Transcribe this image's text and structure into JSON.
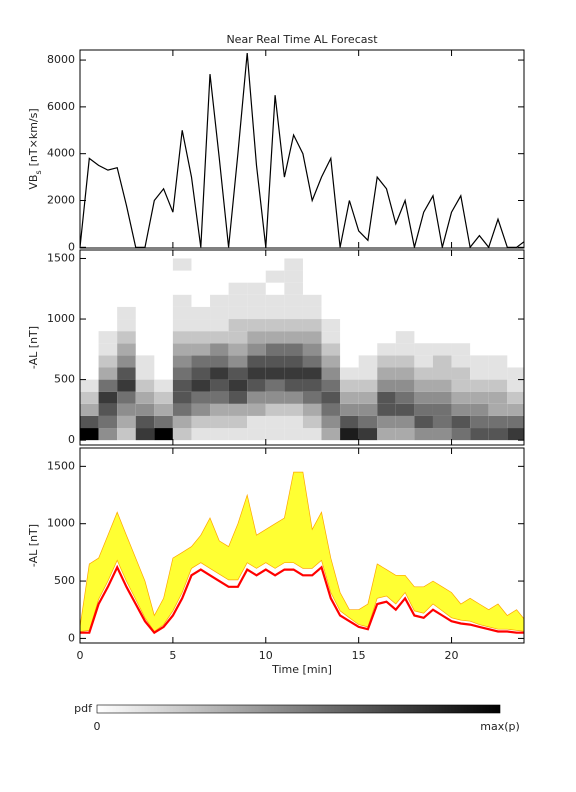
{
  "chart_data": [
    {
      "type": "line",
      "title": "Near Real Time AL Forecast",
      "ylabel": [
        "VB",
        "s",
        "[nT×km/s]"
      ],
      "x": [
        0,
        0.5,
        1,
        1.5,
        2,
        2.5,
        3,
        3.5,
        4,
        4.5,
        5,
        5.5,
        6,
        6.5,
        7,
        7.5,
        8,
        8.5,
        9,
        9.5,
        10,
        10.5,
        11,
        11.5,
        12,
        12.5,
        13,
        13.5,
        14,
        14.5,
        15,
        15.5,
        16,
        16.5,
        17,
        17.5,
        18,
        18.5,
        19,
        19.5,
        20,
        20.5,
        21,
        21.5,
        22,
        22.5,
        23,
        23.5,
        24
      ],
      "series": [
        {
          "color": "#000000",
          "values": [
            0,
            3800,
            3500,
            3300,
            3400,
            1800,
            0,
            0,
            2000,
            2500,
            1500,
            5000,
            3000,
            0,
            7400,
            3800,
            0,
            4000,
            8300,
            3500,
            0,
            6500,
            3000,
            4800,
            4000,
            2000,
            3000,
            3800,
            0,
            2000,
            700,
            300,
            3000,
            2500,
            1000,
            2000,
            0,
            1500,
            2200,
            0,
            1500,
            2200,
            0,
            500,
            0,
            1200,
            0,
            0,
            300
          ]
        }
      ],
      "xlim": [
        0,
        23.9
      ],
      "xticks": [
        0,
        5,
        10,
        15,
        20
      ],
      "ylim": [
        -30,
        8430
      ],
      "yticks": [
        0,
        2000,
        4000,
        6000,
        8000
      ]
    },
    {
      "type": "heatmap",
      "ylabel": "-AL [nT]",
      "x_bins": [
        0,
        1,
        2,
        3,
        4,
        5,
        6,
        7,
        8,
        9,
        10,
        11,
        12,
        13,
        14,
        15,
        16,
        17,
        18,
        19,
        20,
        21,
        22,
        23,
        24
      ],
      "y_bins": [
        0,
        100,
        200,
        300,
        400,
        500,
        600,
        700,
        800,
        900,
        1000,
        1100,
        1200,
        1300,
        1400,
        1500,
        1600
      ],
      "z": [
        [
          9,
          6,
          3,
          2,
          1,
          0,
          0,
          0,
          0,
          0,
          0,
          0,
          0,
          0,
          0,
          0
        ],
        [
          4,
          5,
          6,
          7,
          5,
          3,
          2,
          1,
          1,
          0,
          0,
          0,
          0,
          0,
          0,
          0
        ],
        [
          2,
          3,
          4,
          5,
          7,
          6,
          4,
          3,
          2,
          1,
          1,
          0,
          0,
          0,
          0,
          0
        ],
        [
          7,
          6,
          4,
          3,
          2,
          1,
          1,
          0,
          0,
          0,
          0,
          0,
          0,
          0,
          0,
          0
        ],
        [
          9,
          5,
          3,
          2,
          1,
          0,
          0,
          0,
          0,
          0,
          0,
          0,
          0,
          0,
          0,
          0
        ],
        [
          2,
          3,
          5,
          6,
          6,
          5,
          4,
          3,
          2,
          1,
          1,
          1,
          0,
          0,
          1,
          0
        ],
        [
          1,
          2,
          4,
          5,
          7,
          6,
          5,
          3,
          2,
          1,
          1,
          0,
          0,
          0,
          0,
          0
        ],
        [
          1,
          2,
          3,
          5,
          6,
          7,
          5,
          4,
          2,
          1,
          1,
          1,
          0,
          0,
          0,
          0
        ],
        [
          1,
          2,
          3,
          6,
          7,
          6,
          4,
          3,
          2,
          2,
          1,
          1,
          1,
          0,
          0,
          0
        ],
        [
          1,
          1,
          3,
          4,
          6,
          7,
          6,
          4,
          3,
          2,
          1,
          1,
          1,
          0,
          0,
          0
        ],
        [
          1,
          1,
          2,
          4,
          5,
          7,
          6,
          5,
          3,
          2,
          1,
          1,
          0,
          1,
          0,
          0
        ],
        [
          1,
          1,
          2,
          4,
          6,
          7,
          6,
          5,
          3,
          2,
          1,
          1,
          1,
          1,
          1,
          0
        ],
        [
          1,
          2,
          3,
          5,
          6,
          7,
          5,
          4,
          3,
          2,
          1,
          1,
          0,
          0,
          0,
          0
        ],
        [
          3,
          4,
          5,
          6,
          5,
          4,
          3,
          2,
          1,
          1,
          0,
          0,
          0,
          0,
          0,
          0
        ],
        [
          8,
          6,
          4,
          3,
          2,
          1,
          0,
          0,
          0,
          0,
          0,
          0,
          0,
          0,
          0,
          0
        ],
        [
          7,
          5,
          4,
          3,
          2,
          1,
          1,
          0,
          0,
          0,
          0,
          0,
          0,
          0,
          0,
          0
        ],
        [
          3,
          4,
          6,
          6,
          4,
          3,
          2,
          1,
          0,
          0,
          0,
          0,
          0,
          0,
          0,
          0
        ],
        [
          3,
          4,
          6,
          5,
          4,
          3,
          2,
          1,
          1,
          0,
          0,
          0,
          0,
          0,
          0,
          0
        ],
        [
          4,
          6,
          5,
          4,
          3,
          2,
          1,
          1,
          0,
          0,
          0,
          0,
          0,
          0,
          0,
          0
        ],
        [
          4,
          5,
          5,
          4,
          3,
          2,
          2,
          1,
          0,
          0,
          0,
          0,
          0,
          0,
          0,
          0
        ],
        [
          5,
          6,
          4,
          3,
          2,
          2,
          1,
          1,
          0,
          0,
          0,
          0,
          0,
          0,
          0,
          0
        ],
        [
          6,
          5,
          4,
          3,
          2,
          1,
          1,
          0,
          0,
          0,
          0,
          0,
          0,
          0,
          0,
          0
        ],
        [
          6,
          5,
          3,
          3,
          2,
          1,
          1,
          0,
          0,
          0,
          0,
          0,
          0,
          0,
          0,
          0
        ],
        [
          7,
          5,
          3,
          2,
          1,
          1,
          0,
          0,
          0,
          0,
          0,
          0,
          0,
          0,
          0,
          0
        ]
      ],
      "zlim": [
        0,
        9
      ],
      "colorbar": {
        "label": "pdf",
        "min_label": "0",
        "max_label": "max(p)"
      },
      "xlim": [
        0,
        23.9
      ],
      "xticks": [
        0,
        5,
        10,
        15,
        20
      ],
      "ylim": [
        -40,
        1570
      ],
      "yticks": [
        0,
        500,
        1000,
        1500
      ]
    },
    {
      "type": "line",
      "ylabel": "-AL [nT]",
      "xlabel": "Time [min]",
      "x": [
        0,
        0.5,
        1,
        1.5,
        2,
        2.5,
        3,
        3.5,
        4,
        4.5,
        5,
        5.5,
        6,
        6.5,
        7,
        7.5,
        8,
        8.5,
        9,
        9.5,
        10,
        10.5,
        11,
        11.5,
        12,
        12.5,
        13,
        13.5,
        14,
        14.5,
        15,
        15.5,
        16,
        16.5,
        17,
        17.5,
        18,
        18.5,
        19,
        19.5,
        20,
        20.5,
        21,
        21.5,
        22,
        22.5,
        23,
        23.5,
        24
      ],
      "band": {
        "color": "#ffff33",
        "edge_color": "#ffa500",
        "lower": [
          60,
          70,
          340,
          500,
          680,
          500,
          340,
          180,
          60,
          120,
          240,
          400,
          610,
          660,
          610,
          560,
          510,
          510,
          660,
          610,
          660,
          610,
          660,
          660,
          610,
          610,
          680,
          400,
          240,
          180,
          120,
          100,
          350,
          370,
          300,
          400,
          240,
          220,
          300,
          240,
          180,
          160,
          150,
          120,
          100,
          80,
          80,
          70,
          60
        ],
        "upper": [
          100,
          650,
          700,
          900,
          1100,
          900,
          700,
          500,
          200,
          350,
          700,
          750,
          800,
          900,
          1050,
          850,
          800,
          1000,
          1250,
          900,
          950,
          1000,
          1050,
          1450,
          1450,
          950,
          1100,
          700,
          400,
          250,
          250,
          300,
          650,
          600,
          550,
          550,
          450,
          450,
          500,
          450,
          400,
          300,
          350,
          300,
          250,
          300,
          200,
          250,
          150
        ]
      },
      "series": [
        {
          "color": "#ff0000",
          "values": [
            50,
            50,
            300,
            450,
            620,
            450,
            300,
            150,
            50,
            100,
            200,
            350,
            550,
            600,
            550,
            500,
            450,
            450,
            600,
            550,
            600,
            550,
            600,
            600,
            550,
            550,
            620,
            350,
            200,
            150,
            100,
            80,
            300,
            320,
            250,
            350,
            200,
            180,
            250,
            200,
            150,
            130,
            120,
            100,
            80,
            60,
            60,
            50,
            50
          ]
        }
      ],
      "xlim": [
        0,
        23.9
      ],
      "xticks": [
        0,
        5,
        10,
        15,
        20
      ],
      "ylim": [
        -40,
        1660
      ],
      "yticks": [
        0,
        500,
        1000,
        1500
      ]
    }
  ]
}
